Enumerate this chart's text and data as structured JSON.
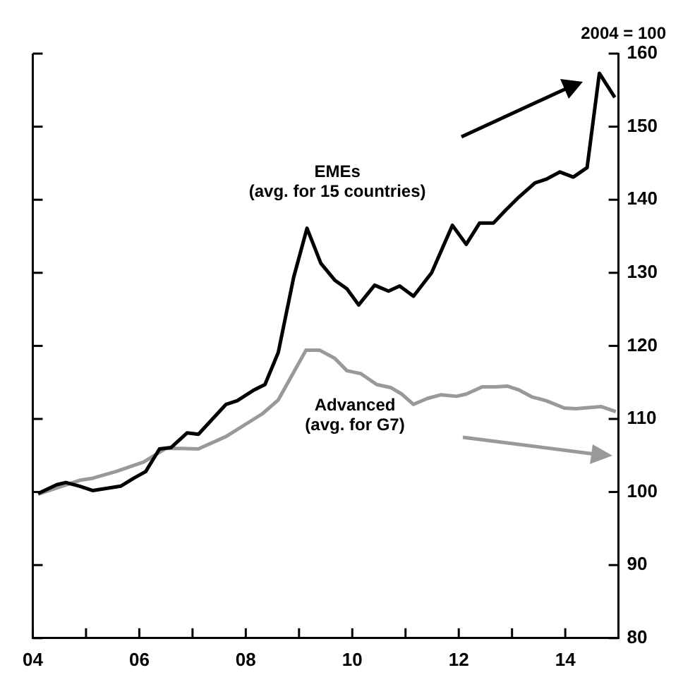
{
  "chart_data": {
    "type": "line",
    "x": [
      2004.1,
      2004.45,
      2004.62,
      2004.88,
      2005.13,
      2005.65,
      2005.9,
      2006.12,
      2006.38,
      2006.6,
      2006.9,
      2007.11,
      2007.63,
      2007.84,
      2008.14,
      2008.36,
      2008.61,
      2008.9,
      2009.15,
      2009.41,
      2009.67,
      2009.9,
      2010.12,
      2010.42,
      2010.68,
      2010.89,
      2011.15,
      2011.49,
      2011.88,
      2012.14,
      2012.39,
      2012.65,
      2012.87,
      2013.12,
      2013.43,
      2013.64,
      2013.9,
      2014.15,
      2014.41,
      2014.64,
      2014.93
    ],
    "series": [
      {
        "name": "EMEs (avg. for 15 countries)",
        "color": "#000000",
        "values": [
          99.8,
          101,
          101.3,
          100.8,
          100.2,
          100.8,
          101.9,
          102.8,
          105.9,
          106.1,
          108.1,
          107.9,
          112,
          112.5,
          113.9,
          114.7,
          119.1,
          129.4,
          136.1,
          131.3,
          129,
          127.8,
          125.6,
          128.3,
          127.5,
          128.2,
          126.8,
          130,
          136.5,
          133.9,
          136.8,
          136.8,
          138.5,
          140.3,
          142.3,
          142.8,
          143.8,
          143.1,
          144.4,
          157.3,
          154
        ]
      },
      {
        "name": "Advanced (avg. for G7)",
        "color": "#999999",
        "x": [
          2004.1,
          2004.88,
          2005.13,
          2005.56,
          2006.08,
          2006.51,
          2007.11,
          2007.63,
          2008.31,
          2008.61,
          2009.13,
          2009.39,
          2009.67,
          2009.9,
          2010.16,
          2010.46,
          2010.72,
          2010.93,
          2011.15,
          2011.41,
          2011.66,
          2011.96,
          2012.14,
          2012.44,
          2012.69,
          2012.91,
          2013.12,
          2013.38,
          2013.64,
          2013.98,
          2014.2,
          2014.67,
          2014.95
        ],
        "values": [
          99.7,
          101.6,
          101.9,
          102.8,
          104.1,
          106,
          105.9,
          107.6,
          110.7,
          112.6,
          119.4,
          119.4,
          118.3,
          116.6,
          116.2,
          114.7,
          114.3,
          113.4,
          112,
          112.8,
          113.3,
          113.1,
          113.4,
          114.4,
          114.4,
          114.5,
          114,
          113,
          112.5,
          111.5,
          111.4,
          111.7,
          111
        ]
      }
    ],
    "xlim": [
      2004,
      2015
    ],
    "xticks": [
      {
        "value": 2004,
        "label": "04"
      },
      {
        "value": 2005,
        "label": null
      },
      {
        "value": 2006,
        "label": "06"
      },
      {
        "value": 2007,
        "label": null
      },
      {
        "value": 2008,
        "label": "08"
      },
      {
        "value": 2009,
        "label": null
      },
      {
        "value": 2010,
        "label": "10"
      },
      {
        "value": 2011,
        "label": null
      },
      {
        "value": 2012,
        "label": "12"
      },
      {
        "value": 2013,
        "label": null
      },
      {
        "value": 2014,
        "label": "14"
      }
    ],
    "ylim": [
      80,
      160
    ],
    "yticks": [
      80,
      90,
      100,
      110,
      120,
      130,
      140,
      150,
      160
    ],
    "annotations": [
      "2004 = 100"
    ],
    "legend": false,
    "marker": "none",
    "line_style": "solid"
  }
}
